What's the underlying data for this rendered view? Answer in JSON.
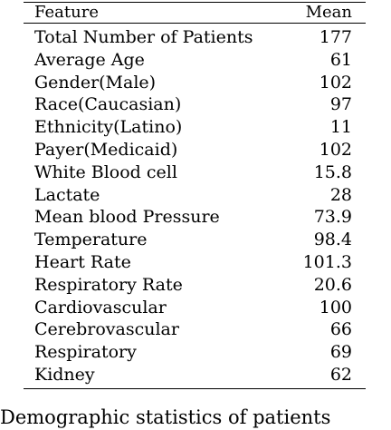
{
  "table": {
    "headers": {
      "feature": "Feature",
      "mean": "Mean"
    },
    "rows": [
      {
        "feature": "Total Number of Patients",
        "mean": "177"
      },
      {
        "feature": "Average Age",
        "mean": "61"
      },
      {
        "feature": "Gender(Male)",
        "mean": "102"
      },
      {
        "feature": "Race(Caucasian)",
        "mean": "97"
      },
      {
        "feature": "Ethnicity(Latino)",
        "mean": "11"
      },
      {
        "feature": "Payer(Medicaid)",
        "mean": "102"
      },
      {
        "feature": "White Blood cell",
        "mean": "15.8"
      },
      {
        "feature": "Lactate",
        "mean": "28"
      },
      {
        "feature": "Mean blood Pressure",
        "mean": "73.9"
      },
      {
        "feature": "Temperature",
        "mean": "98.4"
      },
      {
        "feature": "Heart Rate",
        "mean": "101.3"
      },
      {
        "feature": "Respiratory Rate",
        "mean": "20.6"
      },
      {
        "feature": "Cardiovascular",
        "mean": "100"
      },
      {
        "feature": "Cerebrovascular",
        "mean": "66"
      },
      {
        "feature": "Respiratory",
        "mean": "69"
      },
      {
        "feature": "Kidney",
        "mean": "62"
      }
    ]
  },
  "caption": {
    "text": "Demographic statistics of patients"
  }
}
